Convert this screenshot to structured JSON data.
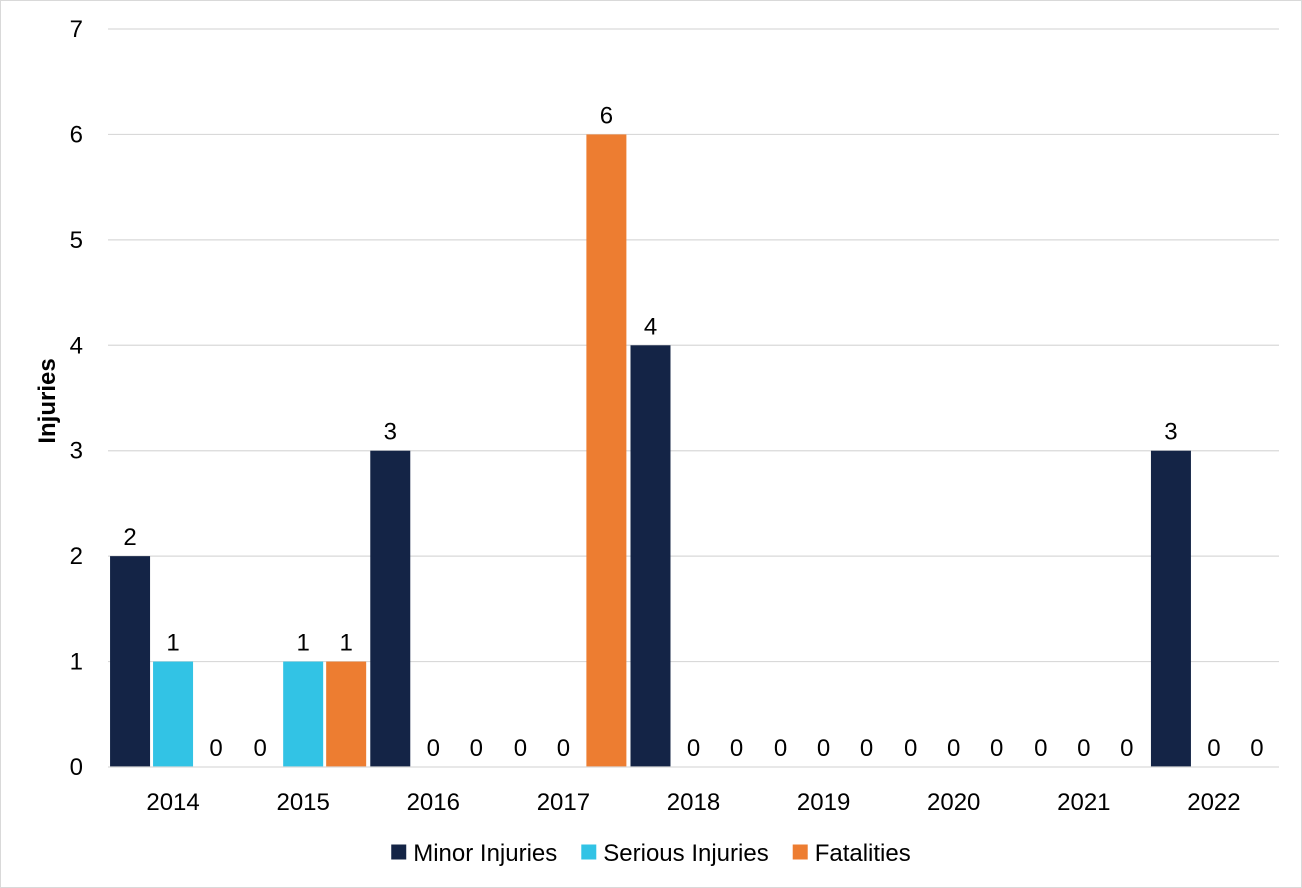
{
  "chart_data": {
    "type": "bar",
    "xlabel": "",
    "ylabel": "Injuries",
    "ylim": [
      0,
      7
    ],
    "yticks": [
      "0",
      "1",
      "2",
      "3",
      "4",
      "5",
      "6",
      "7"
    ],
    "grid": true,
    "legend_position": "bottom",
    "categories": [
      "2014",
      "2015",
      "2016",
      "2017",
      "2018",
      "2019",
      "2020",
      "2021",
      "2022"
    ],
    "series": [
      {
        "name": "Minor Injuries",
        "color": "#142446",
        "values": [
          2,
          0,
          3,
          0,
          4,
          0,
          0,
          0,
          3
        ]
      },
      {
        "name": "Serious Injuries",
        "color": "#32C3E5",
        "values": [
          1,
          1,
          0,
          0,
          0,
          0,
          0,
          0,
          0
        ]
      },
      {
        "name": "Fatalities",
        "color": "#ED7D31",
        "values": [
          0,
          1,
          0,
          6,
          0,
          0,
          0,
          0,
          0
        ]
      }
    ]
  }
}
